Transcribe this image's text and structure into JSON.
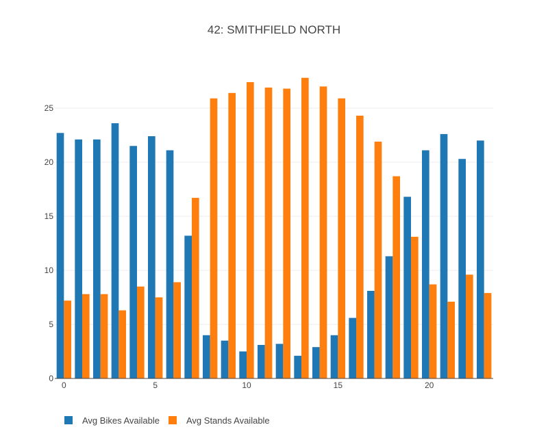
{
  "chart_data": {
    "type": "bar",
    "title": "42: SMITHFIELD NORTH",
    "xlabel": "",
    "ylabel": "",
    "x": [
      0,
      1,
      2,
      3,
      4,
      5,
      6,
      7,
      8,
      9,
      10,
      11,
      12,
      13,
      14,
      15,
      16,
      17,
      18,
      19,
      20,
      21,
      22,
      23
    ],
    "series": [
      {
        "name": "Avg Bikes Available",
        "color": "#1f77b4",
        "values": [
          22.7,
          22.1,
          22.1,
          23.6,
          21.5,
          22.4,
          21.1,
          13.2,
          4.0,
          3.5,
          2.5,
          3.1,
          3.2,
          2.1,
          2.9,
          4.0,
          5.6,
          8.1,
          11.3,
          16.8,
          21.1,
          22.6,
          20.3,
          22.0
        ]
      },
      {
        "name": "Avg Stands Available",
        "color": "#ff7f0e",
        "values": [
          7.2,
          7.8,
          7.8,
          6.3,
          8.5,
          7.5,
          8.9,
          16.7,
          25.9,
          26.4,
          27.4,
          26.9,
          26.8,
          27.8,
          27.0,
          25.9,
          24.3,
          21.9,
          18.7,
          13.1,
          8.7,
          7.1,
          9.6,
          7.9
        ]
      }
    ],
    "xticks": [
      0,
      5,
      10,
      15,
      20
    ],
    "yticks": [
      0,
      5,
      10,
      15,
      20,
      25
    ],
    "xlim": [
      -0.5,
      23.5
    ],
    "ylim": [
      0,
      29.3
    ],
    "grid": true,
    "legend_position": "bottom-left"
  }
}
